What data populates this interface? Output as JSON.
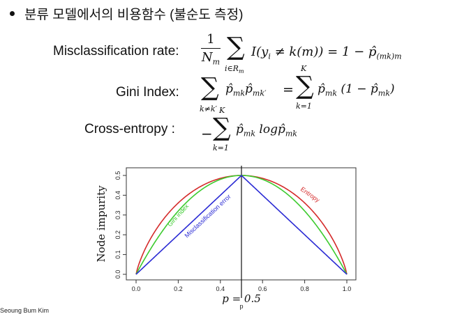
{
  "heading": "분류 모델에서의 비용함수 (불순도 측정)",
  "formulas": {
    "misclassification": {
      "label": "Misclassification rate:",
      "num": "1",
      "den": "N",
      "den_sub": "m",
      "sum_sub": "i∈R",
      "sum_sub2": "m",
      "body": "I(y",
      "body_i": "i",
      "body2": " ≠ k(m)) = 1 − p̂",
      "body_sub": "(mk)m"
    },
    "gini": {
      "label": "Gini Index:",
      "sum1_sub": "k≠k′",
      "term1": "p̂",
      "term1_sub": "mk",
      "term2": "p̂",
      "term2_sub": "mk′",
      "eq": "=",
      "sum2_top": "K",
      "sum2_sub": "k=1",
      "term3": "p̂",
      "term3_sub": "mk",
      "term4": " (1 − p̂",
      "term4_sub": "mk",
      "term4_end": ")"
    },
    "cross_entropy": {
      "label": "Cross-entropy  :",
      "minus": "−",
      "sum_top": "K",
      "sum_sub": "k=1",
      "term1": "p̂",
      "term1_sub": "mk",
      "log": " log",
      "term2": "p̂",
      "term2_sub": "mk"
    }
  },
  "chart_data": {
    "type": "line",
    "xlabel": "p",
    "ylabel": "Node impurity",
    "xlim": [
      0,
      1
    ],
    "ylim": [
      0,
      0.5
    ],
    "x_ticks": [
      "0.0",
      "0.2",
      "0.4",
      "0.6",
      "0.8",
      "1.0"
    ],
    "y_ticks": [
      "0.0",
      "0.1",
      "0.2",
      "0.3",
      "0.4",
      "0.5"
    ],
    "annotation": "p = 0.5",
    "vline_x": 0.5,
    "series": [
      {
        "name": "Entropy",
        "color": "#d42a2a",
        "function": "entropy_scaled",
        "points_x": [
          0,
          0.1,
          0.2,
          0.3,
          0.4,
          0.5,
          0.6,
          0.7,
          0.8,
          0.9,
          1.0
        ],
        "points_y": [
          0,
          0.234,
          0.361,
          0.441,
          0.485,
          0.5,
          0.485,
          0.441,
          0.361,
          0.234,
          0
        ]
      },
      {
        "name": "Gini index",
        "color": "#3ccb2e",
        "function": "gini",
        "points_x": [
          0,
          0.1,
          0.2,
          0.3,
          0.4,
          0.5,
          0.6,
          0.7,
          0.8,
          0.9,
          1.0
        ],
        "points_y": [
          0,
          0.18,
          0.32,
          0.42,
          0.48,
          0.5,
          0.48,
          0.42,
          0.32,
          0.18,
          0
        ]
      },
      {
        "name": "Misclassification error",
        "color": "#2a2ad4",
        "function": "misclass",
        "points_x": [
          0,
          0.5,
          1.0
        ],
        "points_y": [
          0,
          0.5,
          0
        ]
      }
    ]
  },
  "footer": "Seoung Bum Kim"
}
